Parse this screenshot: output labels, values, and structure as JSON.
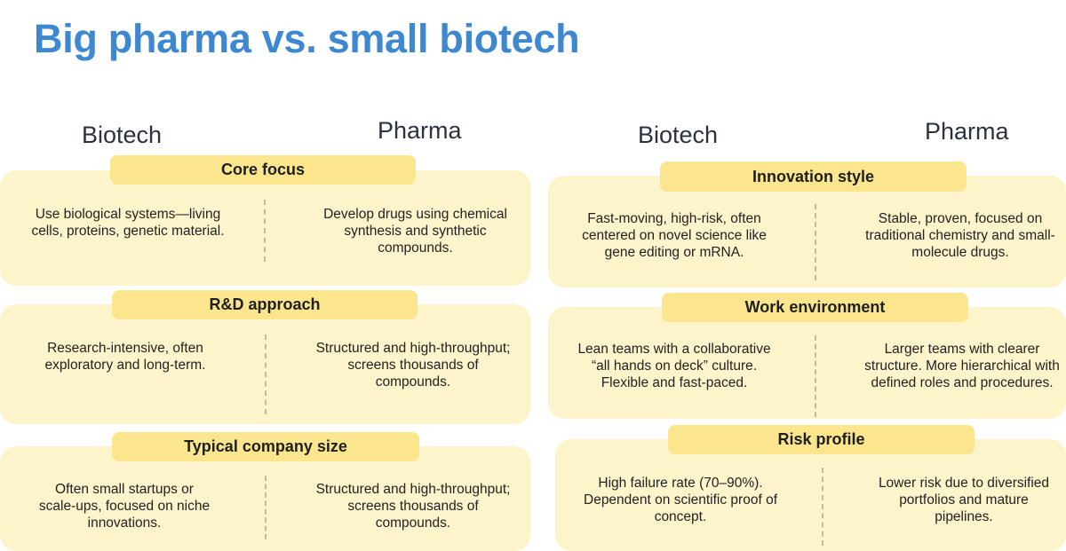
{
  "title": "Big pharma vs. small biotech",
  "headers": {
    "left_biotech": "Biotech",
    "left_pharma": "Pharma",
    "right_biotech": "Biotech",
    "right_pharma": "Pharma"
  },
  "left": [
    {
      "label": "Core focus",
      "biotech": "Use biological systems—living cells, proteins, genetic material.",
      "pharma": "Develop drugs using chemical synthesis and synthetic compounds."
    },
    {
      "label": "R&D approach",
      "biotech": "Research-intensive, often exploratory and long-term.",
      "pharma": "Structured and high-throughput; screens thousands of compounds."
    },
    {
      "label": "Typical company size",
      "biotech": "Often small startups or scale-ups, focused on niche innovations.",
      "pharma": "Structured and high-throughput; screens thousands of compounds."
    }
  ],
  "right": [
    {
      "label": "Innovation style",
      "biotech": "Fast-moving, high-risk, often centered on novel science like gene editing or mRNA.",
      "pharma": "Stable, proven, focused on traditional chemistry and small-molecule drugs."
    },
    {
      "label": "Work environment",
      "biotech": "Lean teams with a collaborative “all hands on deck” culture. Flexible and fast-paced.",
      "pharma": "Larger teams with clearer structure. More hierarchical with defined roles and procedures."
    },
    {
      "label": "Risk profile",
      "biotech": "High failure rate (70–90%). Dependent on scientific proof of concept.",
      "pharma": "Lower risk due to diversified portfolios and mature pipelines."
    }
  ]
}
